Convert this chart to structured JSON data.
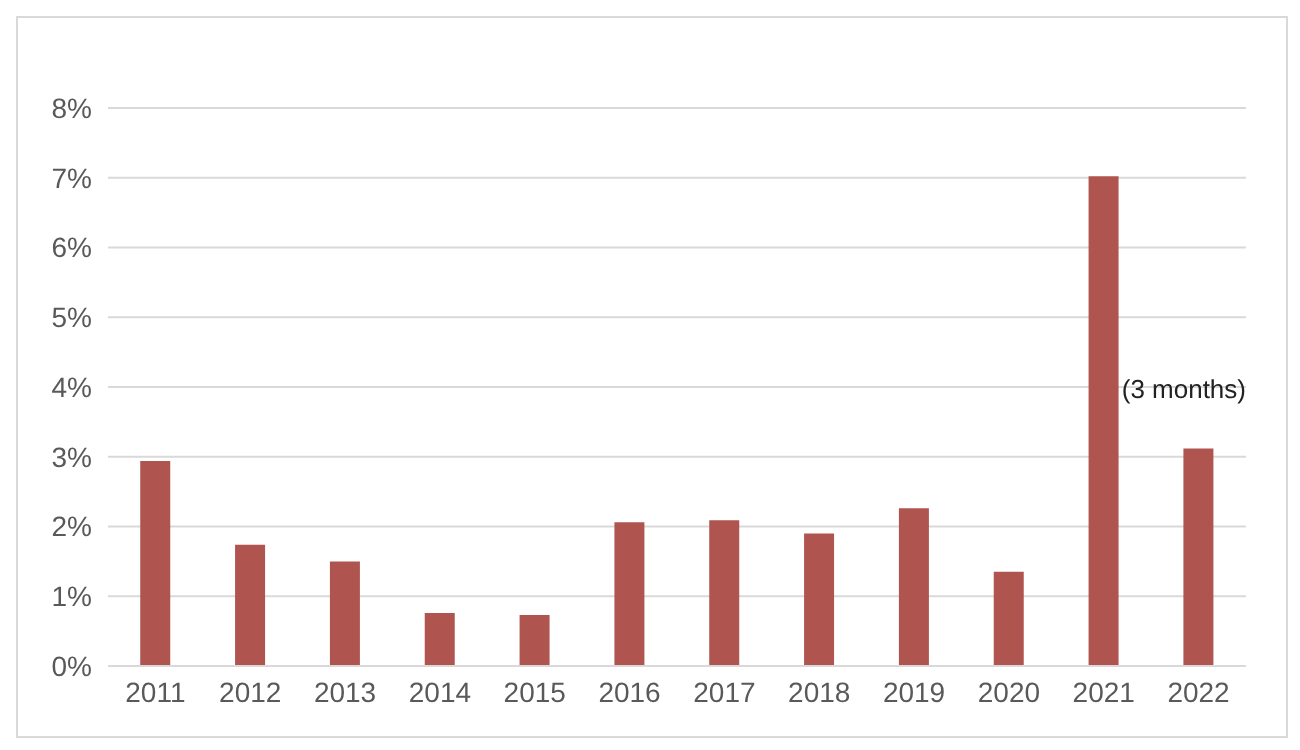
{
  "chart_data": {
    "type": "bar",
    "categories": [
      "2011",
      "2012",
      "2013",
      "2014",
      "2015",
      "2016",
      "2017",
      "2018",
      "2019",
      "2020",
      "2021",
      "2022"
    ],
    "values": [
      2.94,
      1.74,
      1.5,
      0.76,
      0.73,
      2.06,
      2.09,
      1.9,
      2.26,
      1.35,
      7.02,
      3.12
    ],
    "color": "#b0544f",
    "ylim": [
      0,
      8
    ],
    "yticks": [
      {
        "value": 0,
        "label": "0%"
      },
      {
        "value": 1,
        "label": "1%"
      },
      {
        "value": 2,
        "label": "2%"
      },
      {
        "value": 3,
        "label": "3%"
      },
      {
        "value": 4,
        "label": "4%"
      },
      {
        "value": 5,
        "label": "5%"
      },
      {
        "value": 6,
        "label": "6%"
      },
      {
        "value": 7,
        "label": "7%"
      },
      {
        "value": 8,
        "label": "8%"
      }
    ],
    "grid": "y",
    "annotations": [
      "(3 months)"
    ]
  }
}
